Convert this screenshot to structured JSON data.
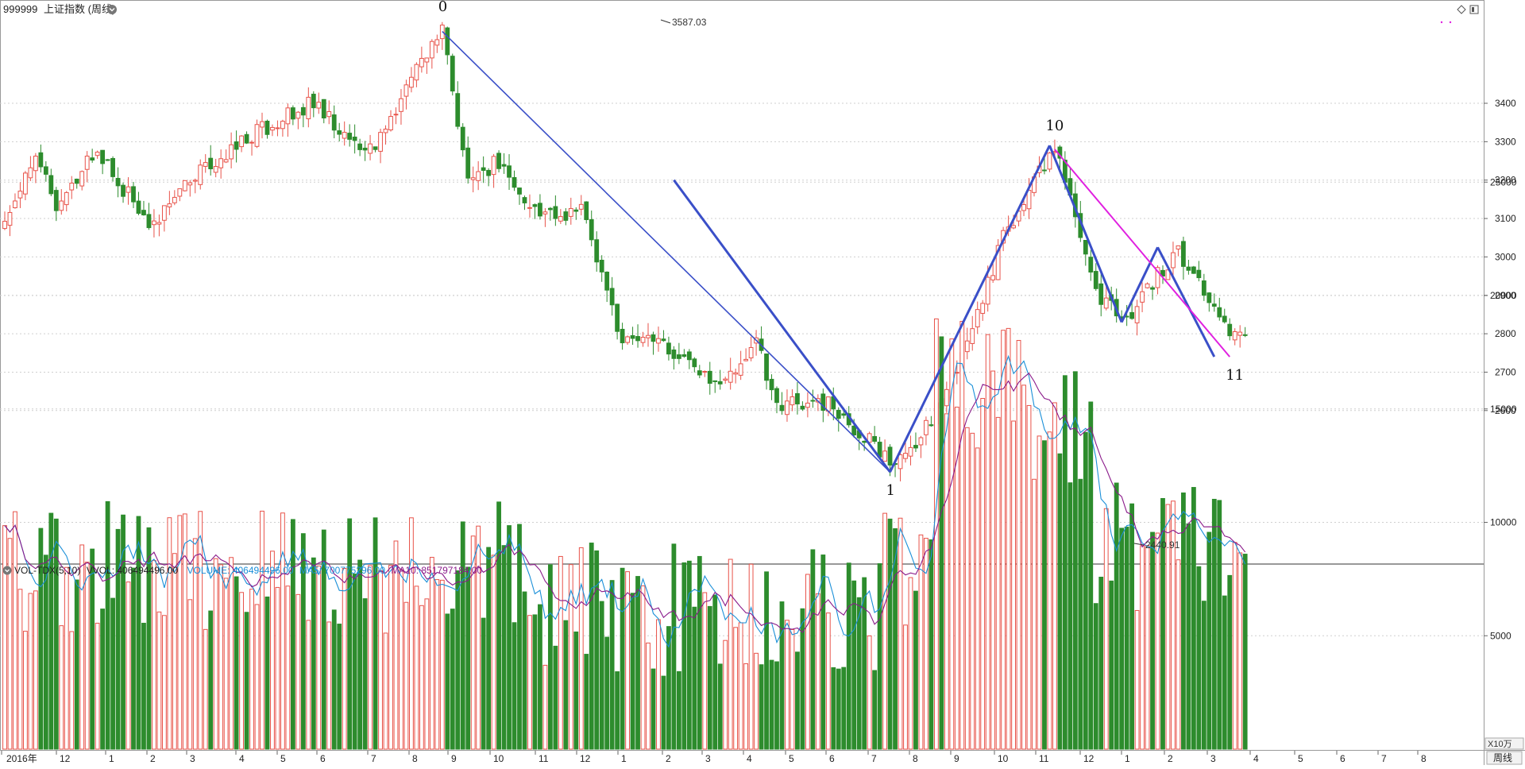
{
  "header": {
    "symbol": "999999",
    "name": "上证指数",
    "period": "(周线)"
  },
  "indicator": {
    "name": "VOL-TDX(5,10)",
    "vvol": "VVOL: 406494496.00",
    "volume": "VOLUME: 406494496.00",
    "ma5": "MA5: 700775296.00",
    "ma10": "MA10: 851797184.00"
  },
  "bottom_bar": {
    "volume_unit": "X10万",
    "period_button": "周线"
  },
  "colors": {
    "up": "#e8534a",
    "down": "#2d8c2d",
    "wave_main": "#3a4fc8",
    "wave_pending": "#e020e0",
    "ma5": "#1a8fd8",
    "ma10": "#8a1a8a",
    "grid": "#cfcfcf"
  },
  "chart_data": {
    "type": "candlestick",
    "price_axis": {
      "ticks": [
        2600,
        2700,
        2800,
        2900,
        3000,
        3100,
        3200,
        3300,
        3400
      ]
    },
    "volume_axis": {
      "ticks": [
        5000,
        10000,
        15000,
        20000,
        25000
      ]
    },
    "month_labels": [
      "2016年",
      "12",
      "1",
      "2",
      "3",
      "4",
      "5",
      "6",
      "7",
      "8",
      "9",
      "10",
      "11",
      "12",
      "1",
      "2",
      "3",
      "4",
      "5",
      "6",
      "7",
      "8",
      "9",
      "10",
      "11",
      "12",
      "1",
      "2",
      "3",
      "4",
      "5",
      "6",
      "7",
      "8"
    ],
    "annotations": [
      {
        "label": "3587.03"
      },
      {
        "label": "2440.91"
      }
    ],
    "wave_labels": [
      "0",
      "1",
      "10",
      "11"
    ],
    "series": [
      {
        "name": "VOLUME"
      },
      {
        "name": "MA5"
      },
      {
        "name": "MA10"
      }
    ]
  }
}
